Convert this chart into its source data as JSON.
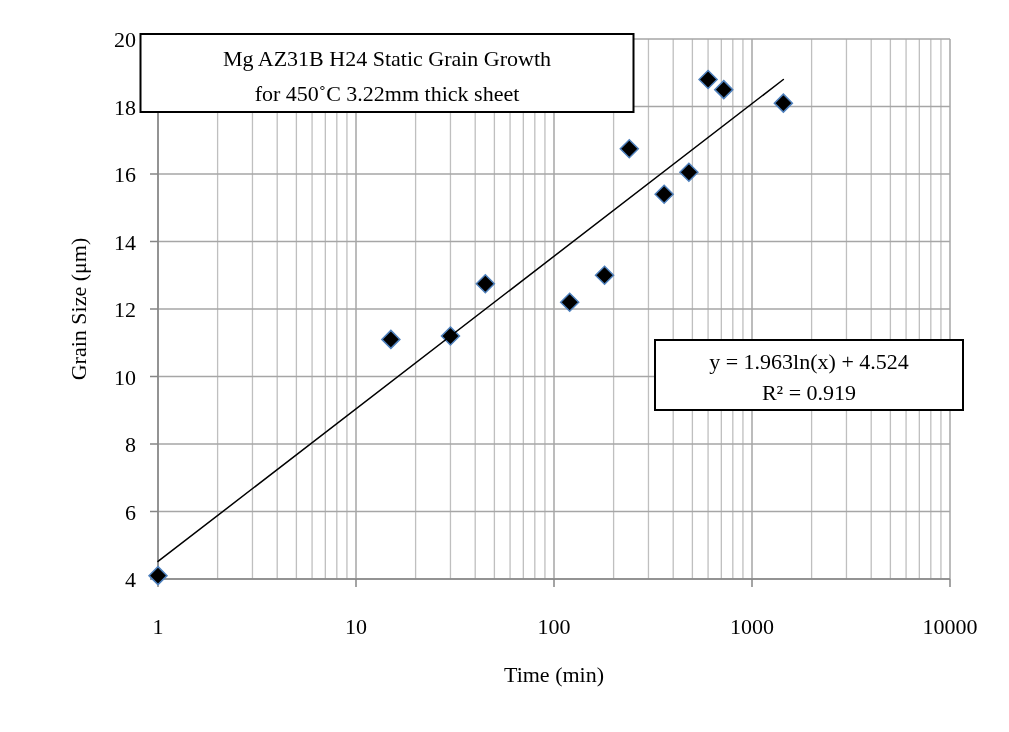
{
  "chart_data": {
    "type": "scatter",
    "title": "Mg AZ31B H24 Static Grain Growth\nfor 450˚C 3.22mm thick sheet",
    "xlabel": "Time (min)",
    "ylabel": "Grain Size (μm)",
    "series": [
      {
        "color": "#000000",
        "marker": "diamond",
        "x": [
          1,
          15,
          30,
          45,
          120,
          180,
          240,
          360,
          480,
          600,
          720,
          1440
        ],
        "values": [
          4.1,
          11.1,
          11.2,
          12.75,
          12.2,
          13,
          16.75,
          15.4,
          16.05,
          18.8,
          18.5,
          18.1
        ]
      },
      {
        "type": "line",
        "color": "#000000",
        "marker": "none",
        "line_style": "solid",
        "x": [
          1,
          1440
        ],
        "values": [
          4.52,
          18.8
        ]
      }
    ],
    "annotations": [
      "y = 1.963ln(x) + 4.524\nR² = 0.919"
    ],
    "log": "x",
    "grid": true,
    "xlim": [
      1,
      10000
    ],
    "xticks": [
      1,
      10,
      100,
      1000,
      10000
    ],
    "ylim": [
      4,
      20
    ],
    "yticks": [
      4,
      6,
      8,
      10,
      12,
      14,
      16,
      18,
      20
    ]
  }
}
